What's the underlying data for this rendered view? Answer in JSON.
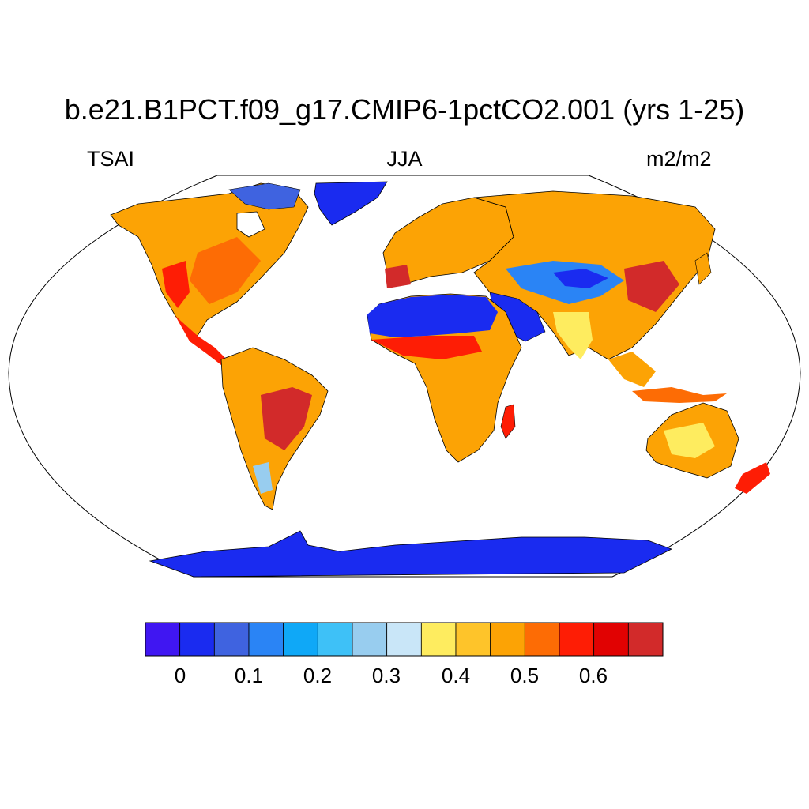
{
  "title": "b.e21.B1PCT.f09_g17.CMIP6-1pctCO2.001 (yrs 1-25)",
  "left_label": "TSAI",
  "center_label": "JJA",
  "right_label": "m2/m2",
  "map": {
    "projection": "robinson",
    "ocean_color": "#ffffff",
    "coastline_color": "#000000"
  },
  "colorbar": {
    "colors": [
      "#4016f2",
      "#1a2bf0",
      "#3f63e0",
      "#2a84f5",
      "#0fa8f7",
      "#3ec1f7",
      "#98cdef",
      "#c9e6f8",
      "#feec5f",
      "#fec42a",
      "#fca305",
      "#fd6c05",
      "#fe1d05",
      "#e10202",
      "#d22a2a"
    ],
    "tick_labels": [
      "0",
      "0.1",
      "0.2",
      "0.3",
      "0.4",
      "0.5",
      "0.6"
    ]
  }
}
